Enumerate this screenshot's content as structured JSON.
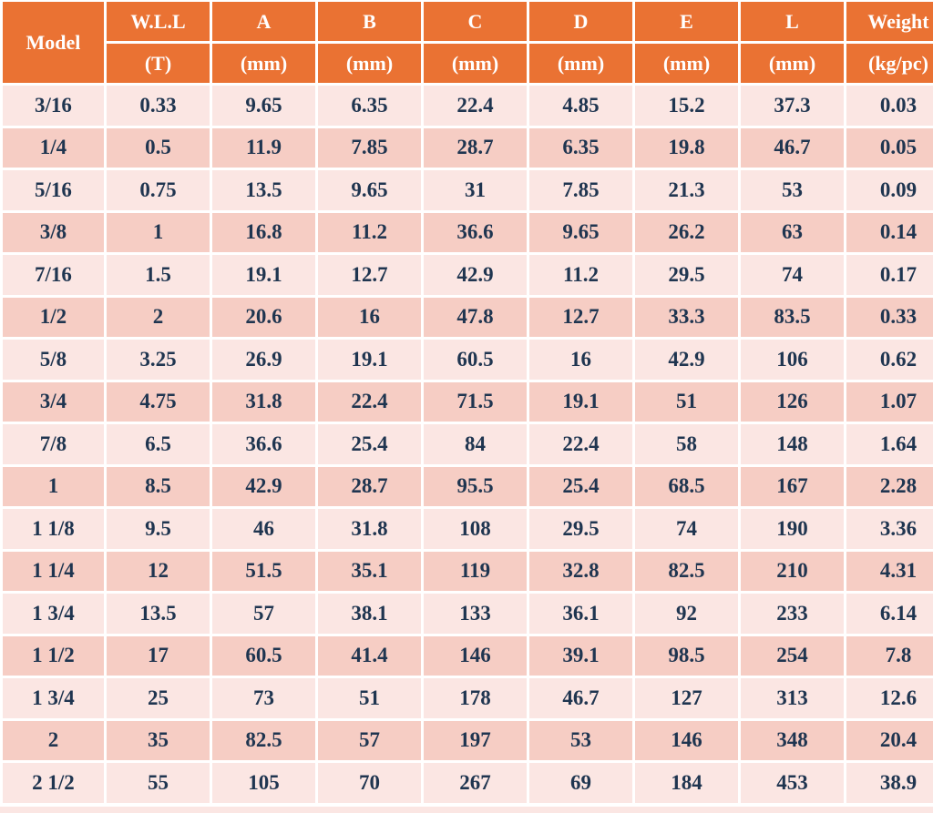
{
  "table": {
    "header": {
      "model": "Model",
      "columns": [
        {
          "name": "W.L.L",
          "unit": "(T)"
        },
        {
          "name": "A",
          "unit": "(mm)"
        },
        {
          "name": "B",
          "unit": "(mm)"
        },
        {
          "name": "C",
          "unit": "(mm)"
        },
        {
          "name": "D",
          "unit": "(mm)"
        },
        {
          "name": "E",
          "unit": "(mm)"
        },
        {
          "name": "L",
          "unit": "(mm)"
        },
        {
          "name": "Weight",
          "unit": "(kg/pc)"
        }
      ]
    },
    "rows": [
      [
        "3/16",
        "0.33",
        "9.65",
        "6.35",
        "22.4",
        "4.85",
        "15.2",
        "37.3",
        "0.03"
      ],
      [
        "1/4",
        "0.5",
        "11.9",
        "7.85",
        "28.7",
        "6.35",
        "19.8",
        "46.7",
        "0.05"
      ],
      [
        "5/16",
        "0.75",
        "13.5",
        "9.65",
        "31",
        "7.85",
        "21.3",
        "53",
        "0.09"
      ],
      [
        "3/8",
        "1",
        "16.8",
        "11.2",
        "36.6",
        "9.65",
        "26.2",
        "63",
        "0.14"
      ],
      [
        "7/16",
        "1.5",
        "19.1",
        "12.7",
        "42.9",
        "11.2",
        "29.5",
        "74",
        "0.17"
      ],
      [
        "1/2",
        "2",
        "20.6",
        "16",
        "47.8",
        "12.7",
        "33.3",
        "83.5",
        "0.33"
      ],
      [
        "5/8",
        "3.25",
        "26.9",
        "19.1",
        "60.5",
        "16",
        "42.9",
        "106",
        "0.62"
      ],
      [
        "3/4",
        "4.75",
        "31.8",
        "22.4",
        "71.5",
        "19.1",
        "51",
        "126",
        "1.07"
      ],
      [
        "7/8",
        "6.5",
        "36.6",
        "25.4",
        "84",
        "22.4",
        "58",
        "148",
        "1.64"
      ],
      [
        "1",
        "8.5",
        "42.9",
        "28.7",
        "95.5",
        "25.4",
        "68.5",
        "167",
        "2.28"
      ],
      [
        "1 1/8",
        "9.5",
        "46",
        "31.8",
        "108",
        "29.5",
        "74",
        "190",
        "3.36"
      ],
      [
        "1 1/4",
        "12",
        "51.5",
        "35.1",
        "119",
        "32.8",
        "82.5",
        "210",
        "4.31"
      ],
      [
        "1 3/4",
        "13.5",
        "57",
        "38.1",
        "133",
        "36.1",
        "92",
        "233",
        "6.14"
      ],
      [
        "1 1/2",
        "17",
        "60.5",
        "41.4",
        "146",
        "39.1",
        "98.5",
        "254",
        "7.8"
      ],
      [
        "1 3/4",
        "25",
        "73",
        "51",
        "178",
        "46.7",
        "127",
        "313",
        "12.6"
      ],
      [
        "2",
        "35",
        "82.5",
        "57",
        "197",
        "53",
        "146",
        "348",
        "20.4"
      ],
      [
        "2 1/2",
        "55",
        "105",
        "70",
        "267",
        "69",
        "184",
        "453",
        "38.9"
      ]
    ]
  }
}
